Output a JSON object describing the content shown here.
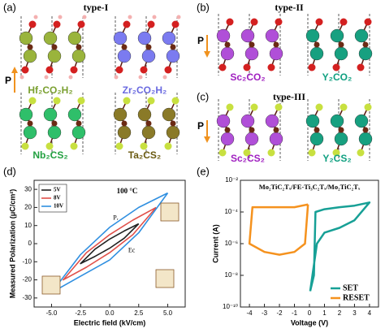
{
  "panels": [
    {
      "label": "(a)",
      "title": "type-I",
      "axis_label": "P",
      "structures": [
        "Hf₂CO₂H₂",
        "Zr₂CO₂H₂",
        "Nb₂CS₂",
        "Ta₂CS₂"
      ]
    },
    {
      "label": "(b)",
      "title": "type-II",
      "axis_label": "P",
      "structures": [
        "Sc₂CO₂",
        "Y₂CO₂"
      ]
    },
    {
      "label": "(c)",
      "title": "type-III",
      "axis_label": "P",
      "structures": [
        "Sc₂CS₂",
        "Y₂CS₂"
      ]
    }
  ],
  "chart_data": [
    {
      "type": "line",
      "panel_label": "(d)",
      "x_label": "Electric field (kV/cm)",
      "y_label": "Measured Polarization (μC/cm²)",
      "annotations": [
        "100 °C",
        "Pᵣ",
        "Ec"
      ],
      "legend": "upper left",
      "xlim": [
        -6.5,
        6.5
      ],
      "xticks": [
        {
          "value": -5,
          "label": "-5.0"
        },
        {
          "value": -2.5,
          "label": "-2.5"
        },
        {
          "value": 0,
          "label": "0.0"
        },
        {
          "value": 2.5,
          "label": "2.5"
        },
        {
          "value": 5,
          "label": "5.0"
        }
      ],
      "ylim": [
        -35,
        35
      ],
      "yticks": [
        -30,
        -20,
        -10,
        0,
        10,
        20,
        30
      ],
      "series": [
        {
          "name": "5V",
          "color": "#222222",
          "x": [
            2.5,
            1.25,
            0,
            -1.25,
            -2.5,
            -1.25,
            0,
            1.25,
            2.5
          ],
          "values": [
            11,
            7,
            2.5,
            -3,
            -11,
            -7,
            -2.5,
            3,
            11
          ]
        },
        {
          "name": "8V",
          "color": "#e0504a",
          "x": [
            4,
            2,
            0,
            -2,
            -4,
            -2,
            0,
            2,
            4
          ],
          "values": [
            20,
            13,
            5,
            -5,
            -20,
            -13,
            -5,
            5,
            20
          ]
        },
        {
          "name": "10V",
          "color": "#2f8fe0",
          "x": [
            5,
            2.5,
            0,
            -2.5,
            -5,
            -2.5,
            0,
            2.5,
            5
          ],
          "values": [
            28,
            20,
            9,
            -6,
            -27,
            -18,
            -9,
            6,
            28
          ]
        }
      ]
    },
    {
      "type": "line",
      "panel_label": "(e)",
      "title": "Mo₂TiC₂Tₓ/FE-Ti₃C₂Tₓ/Mo₂TiC₂Tₓ",
      "x_label": "Voltage (V)",
      "y_label": "Current (A)",
      "log_y": true,
      "legend": "lower right",
      "xlim": [
        -4.6,
        4.6
      ],
      "xticks": [
        -4,
        -3,
        -2,
        -1,
        0,
        1,
        2,
        3,
        4
      ],
      "ylim": [
        1e-10,
        0.01
      ],
      "yticks": [
        {
          "value": 1e-10,
          "label": "10⁻¹⁰"
        },
        {
          "value": 1e-08,
          "label": "10⁻⁸"
        },
        {
          "value": 1e-06,
          "label": "10⁻⁶"
        },
        {
          "value": 0.0001,
          "label": "10⁻⁴"
        },
        {
          "value": 0.01,
          "label": "10⁻²"
        }
      ],
      "series": [
        {
          "name": "SET",
          "color": "#17a096",
          "x": [
            0.05,
            0.3,
            0.4,
            1,
            2,
            3,
            4,
            3,
            2,
            1,
            0.5,
            0.05
          ],
          "values": [
            1e-09,
            1e-08,
            0.0001,
            0.00015,
            0.0002,
            0.00025,
            0.0004,
            3e-05,
            1e-05,
            5e-06,
            1e-06,
            1e-09
          ]
        },
        {
          "name": "RESET",
          "color": "#f5921e",
          "x": [
            -0.1,
            -1,
            -2,
            -3,
            -3.8,
            -4,
            -3,
            -2,
            -1,
            -0.3,
            -0.1
          ],
          "values": [
            0.0003,
            0.0002,
            0.0002,
            0.0002,
            0.0002,
            1e-06,
            3e-07,
            2e-07,
            3e-07,
            1e-06,
            0.0003
          ]
        }
      ]
    }
  ]
}
